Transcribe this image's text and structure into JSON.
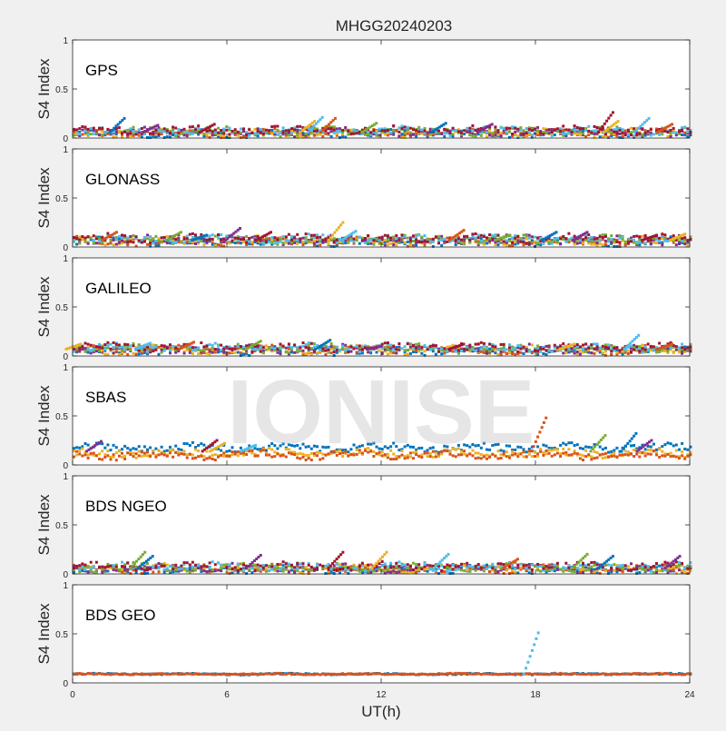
{
  "title": "MHGG20240203",
  "watermark": "IONISE",
  "chart_data": {
    "type": "scatter",
    "title": "MHGG20240203",
    "xlabel": "UT(h)",
    "ylabel": "S4 Index",
    "xlim": [
      0,
      24
    ],
    "ylim": [
      0,
      1
    ],
    "xticks": [
      "0",
      "6",
      "12",
      "18",
      "24"
    ],
    "yticks": [
      "0",
      "0.5",
      "1"
    ],
    "grid": false,
    "legend": "none",
    "colors": [
      "#0072BD",
      "#D95319",
      "#EDB120",
      "#7E2F8E",
      "#77AC30",
      "#4DBEEE",
      "#A2142F"
    ],
    "panels": [
      {
        "name": "GPS",
        "baseline": 0.06,
        "events": [
          [
            2.0,
            0.2
          ],
          [
            3.3,
            0.13
          ],
          [
            5.5,
            0.14
          ],
          [
            9.4,
            0.17
          ],
          [
            9.7,
            0.21
          ],
          [
            10.2,
            0.2
          ],
          [
            11.8,
            0.15
          ],
          [
            14.5,
            0.15
          ],
          [
            16.3,
            0.14
          ],
          [
            21.0,
            0.26
          ],
          [
            21.2,
            0.17
          ],
          [
            22.4,
            0.2
          ],
          [
            23.3,
            0.14
          ]
        ]
      },
      {
        "name": "GLONASS",
        "baseline": 0.07,
        "events": [
          [
            1.7,
            0.15
          ],
          [
            4.2,
            0.15
          ],
          [
            5.2,
            0.12
          ],
          [
            6.5,
            0.19
          ],
          [
            7.7,
            0.15
          ],
          [
            10.5,
            0.25
          ],
          [
            11.0,
            0.16
          ],
          [
            15.2,
            0.17
          ],
          [
            17.0,
            0.12
          ],
          [
            18.8,
            0.15
          ],
          [
            20.0,
            0.15
          ],
          [
            22.7,
            0.12
          ],
          [
            23.8,
            0.13
          ]
        ]
      },
      {
        "name": "GALILEO",
        "baseline": 0.07,
        "events": [
          [
            0.3,
            0.12
          ],
          [
            3.0,
            0.13
          ],
          [
            4.7,
            0.14
          ],
          [
            7.3,
            0.15
          ],
          [
            10.0,
            0.16
          ],
          [
            12.0,
            0.1
          ],
          [
            15.2,
            0.12
          ],
          [
            19.5,
            0.12
          ],
          [
            22.0,
            0.21
          ],
          [
            23.3,
            0.12
          ]
        ]
      },
      {
        "name": "SBAS",
        "baseline": 0.14,
        "events": [
          [
            1.1,
            0.24
          ],
          [
            5.6,
            0.25
          ],
          [
            5.9,
            0.22
          ],
          [
            7.1,
            0.2
          ],
          [
            18.4,
            0.48
          ],
          [
            20.7,
            0.3
          ],
          [
            21.9,
            0.32
          ],
          [
            22.5,
            0.25
          ]
        ]
      },
      {
        "name": "BDS NGEO",
        "baseline": 0.06,
        "events": [
          [
            2.8,
            0.22
          ],
          [
            3.1,
            0.18
          ],
          [
            7.3,
            0.19
          ],
          [
            10.5,
            0.22
          ],
          [
            12.2,
            0.22
          ],
          [
            14.6,
            0.2
          ],
          [
            17.3,
            0.15
          ],
          [
            20.0,
            0.2
          ],
          [
            21.0,
            0.18
          ],
          [
            23.6,
            0.18
          ]
        ]
      },
      {
        "name": "BDS GEO",
        "baseline": 0.09,
        "events": [
          [
            18.1,
            0.51
          ]
        ]
      }
    ]
  }
}
